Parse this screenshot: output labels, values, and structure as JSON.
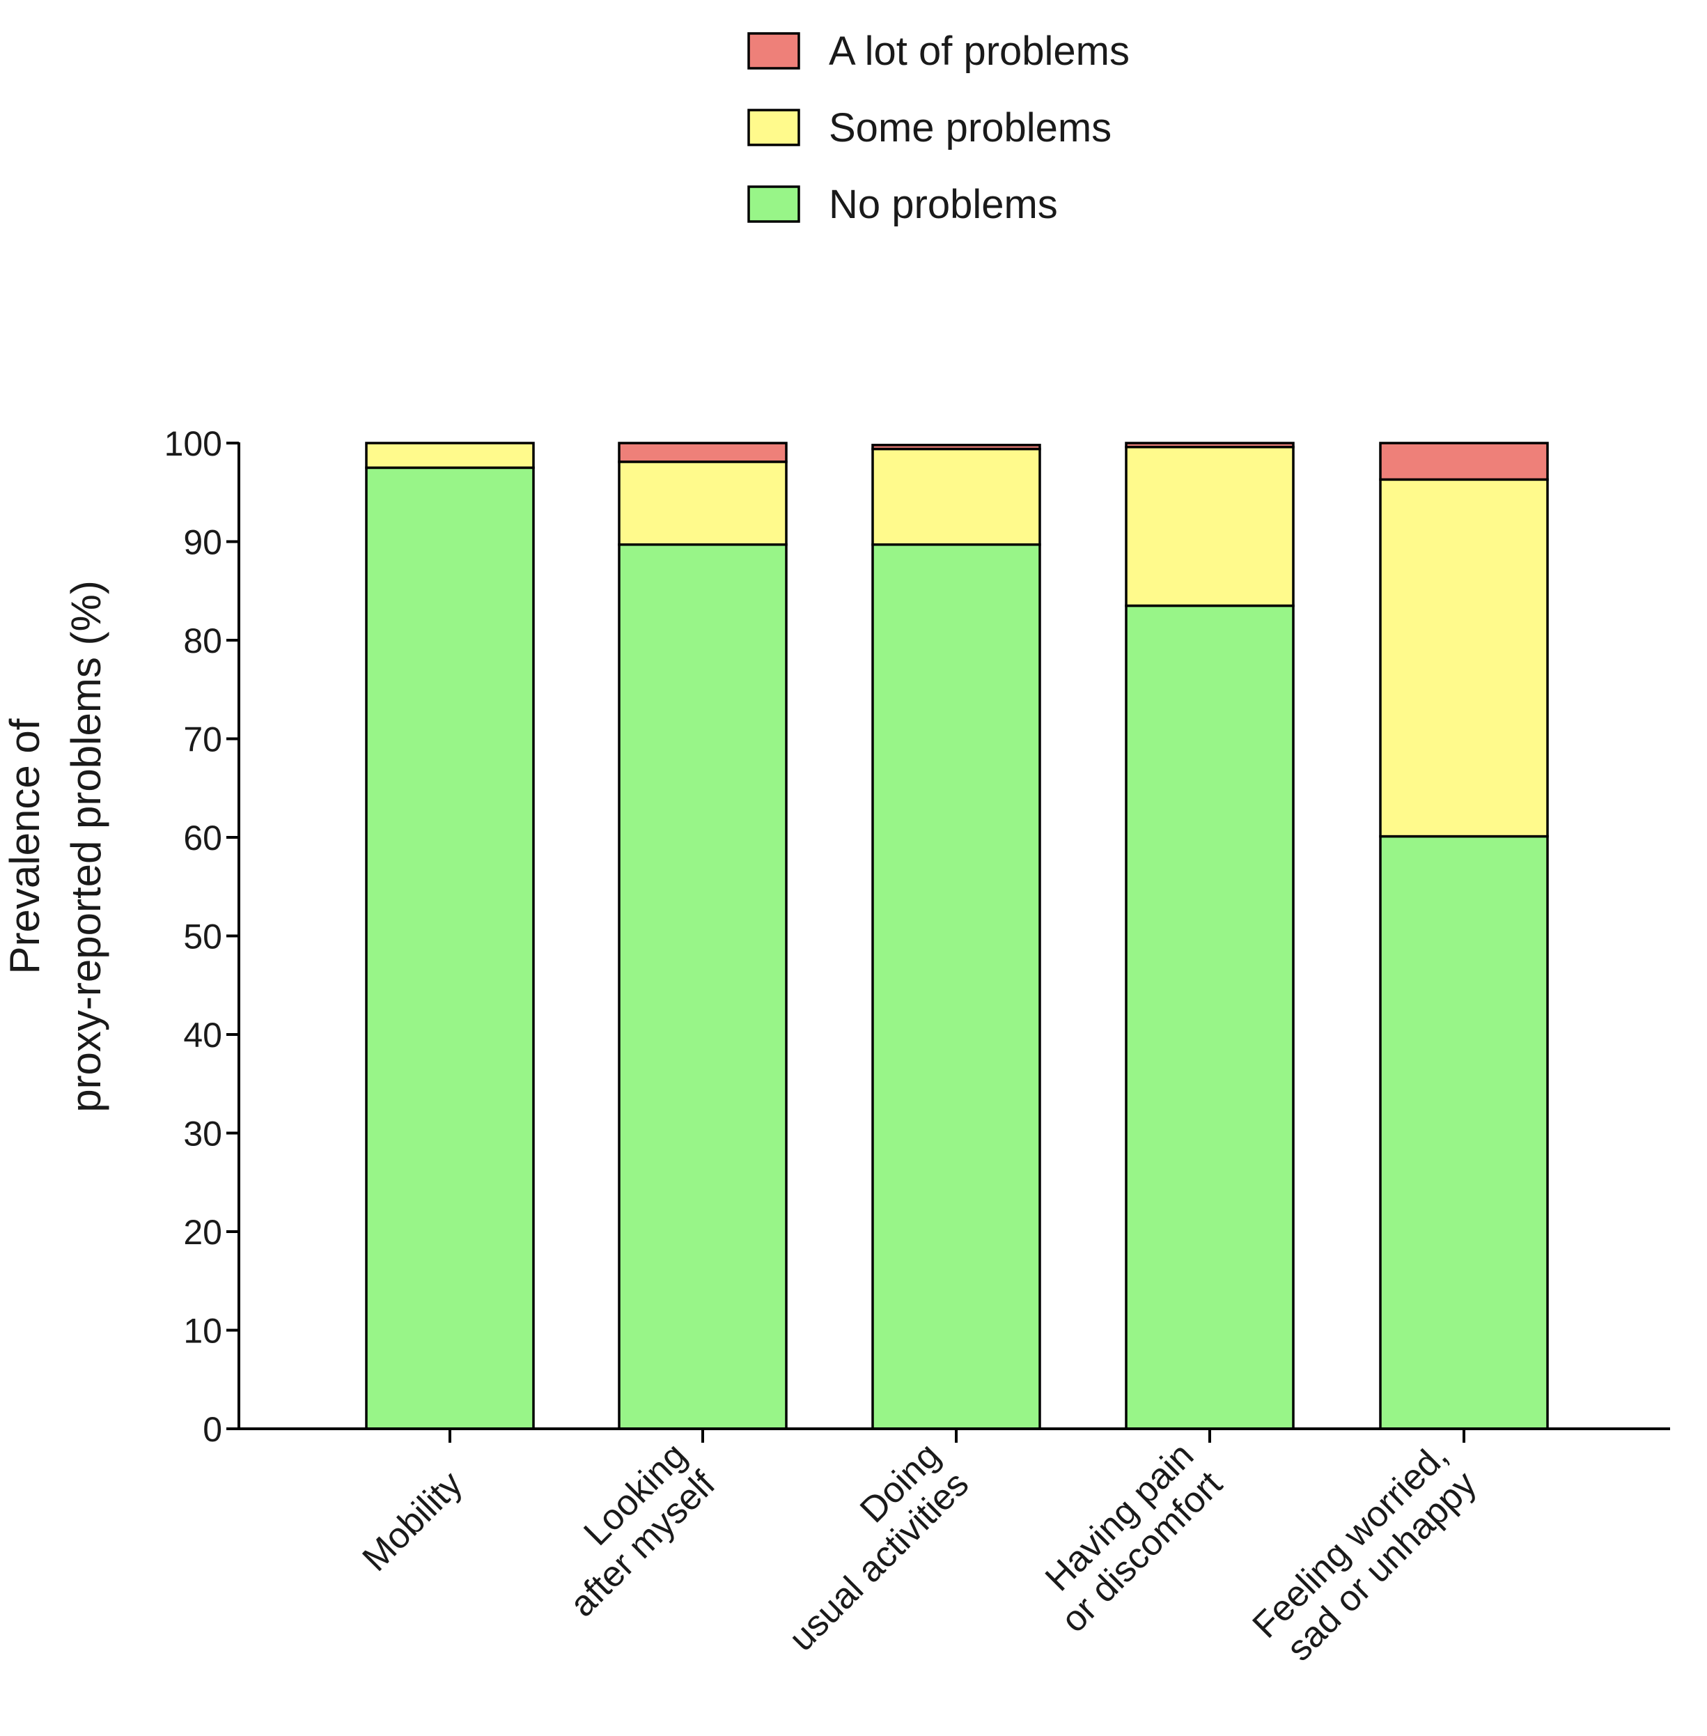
{
  "chart_data": {
    "type": "bar",
    "stacked": true,
    "title": "",
    "xlabel": "",
    "ylabel": [
      "Prevalence of",
      "proxy-reported problems (%)"
    ],
    "ylim": [
      0,
      100
    ],
    "yticks": [
      0,
      10,
      20,
      30,
      40,
      50,
      60,
      70,
      80,
      90,
      100
    ],
    "legend_position": "top-center",
    "categories": [
      [
        "Mobility"
      ],
      [
        "Looking",
        "after myself"
      ],
      [
        "Doing",
        "usual activities"
      ],
      [
        "Having pain",
        "or discomfort"
      ],
      [
        "Feeling worried,",
        "sad or unhappy"
      ]
    ],
    "series": [
      {
        "name": "No problems",
        "color": "#98f588",
        "values": [
          97.5,
          89.7,
          89.7,
          83.5,
          60.1
        ]
      },
      {
        "name": "Some problems",
        "color": "#fffa8c",
        "values": [
          2.5,
          8.4,
          9.7,
          16.1,
          36.2
        ]
      },
      {
        "name": "A lot of problems",
        "color": "#ee8079",
        "values": [
          0.0,
          1.9,
          0.4,
          0.4,
          3.7
        ]
      }
    ],
    "legend_order": [
      "A lot of problems",
      "Some problems",
      "No problems"
    ]
  }
}
